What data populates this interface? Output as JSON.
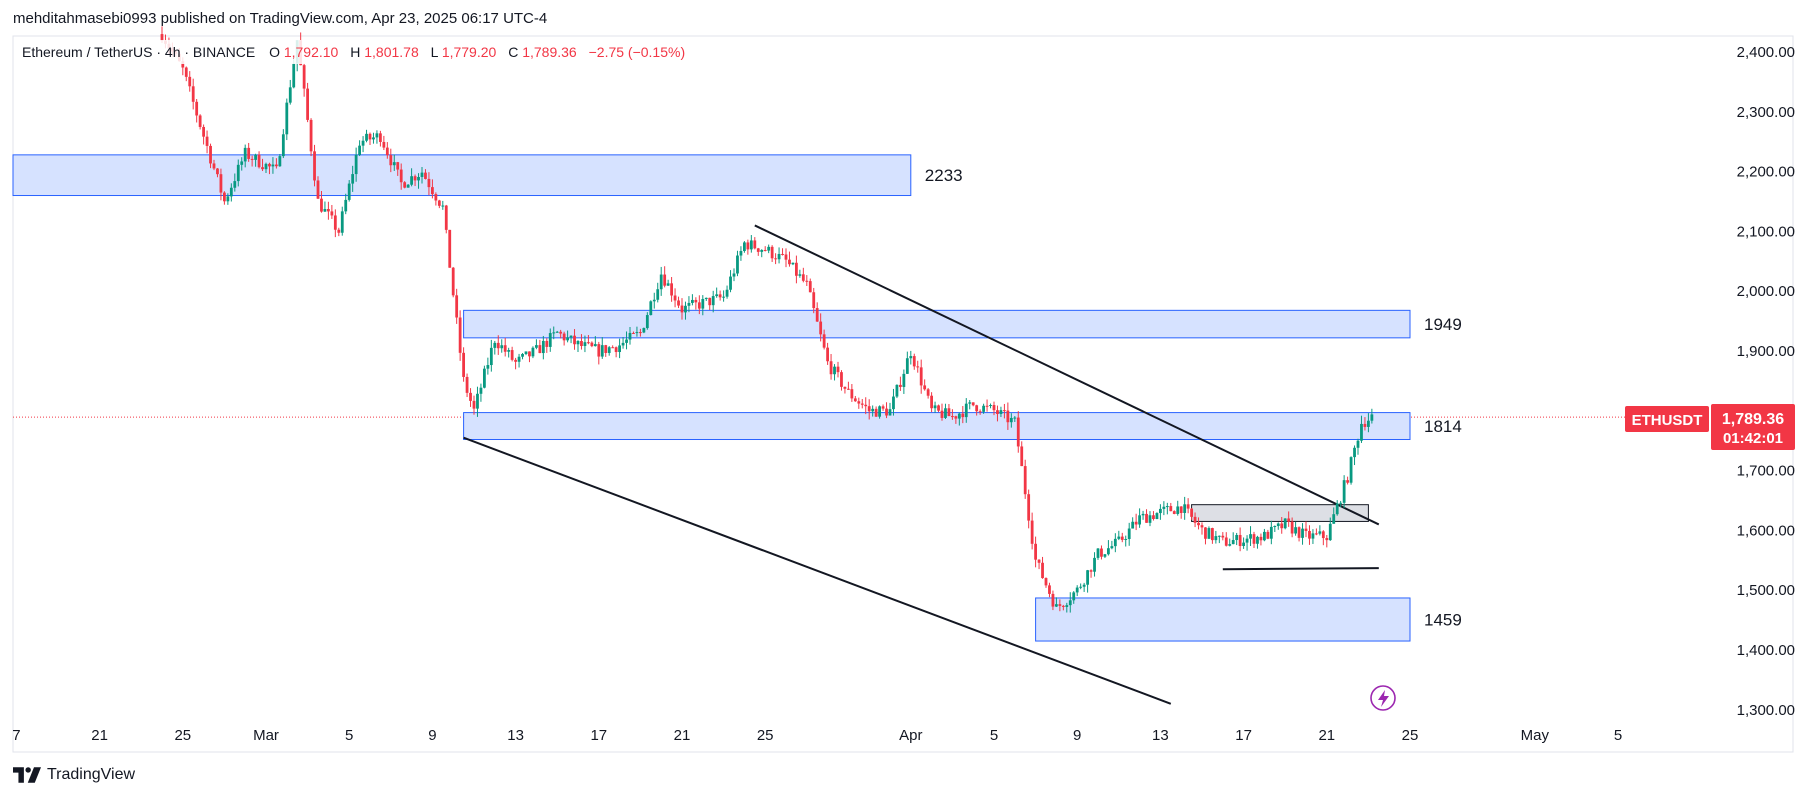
{
  "header": {
    "published": "mehditahmasebi0993 published on TradingView.com, Apr 23, 2025 06:17 UTC-4"
  },
  "symbol_bar": {
    "pair": "Ethereum / TetherUS · 4h · BINANCE",
    "o_label": "O",
    "o_value": "1,792.10",
    "h_label": "H",
    "h_value": "1,801.78",
    "l_label": "L",
    "l_value": "1,779.20",
    "c_label": "C",
    "c_value": "1,789.36",
    "change": "−2.75 (−0.15%)"
  },
  "price_tag": {
    "symbol": "ETHUSDT",
    "price": "1,789.36",
    "countdown": "01:42:01"
  },
  "footer": {
    "brand": "TradingView"
  },
  "colors": {
    "up": "#26a69a",
    "up_candle": "#089981",
    "down": "#f23645",
    "zone_fill": "#d6e2ff",
    "zone_stroke": "#2962ff",
    "box_fill": "#d1d4dc",
    "trendline": "#131722",
    "text": "#131722",
    "tag_red": "#f23645"
  },
  "chart_data": {
    "type": "candlestick",
    "title": "",
    "xlabel": "",
    "ylabel": "",
    "ylim": [
      1270,
      2470
    ],
    "y_ticks": [
      "2,400.00",
      "2,300.00",
      "2,200.00",
      "2,100.00",
      "2,000.00",
      "1,900.00",
      "1,700.00",
      "1,600.00",
      "1,500.00",
      "1,400.00",
      "1,300.00"
    ],
    "y_tick_values": [
      2400,
      2300,
      2200,
      2100,
      2000,
      1900,
      1700,
      1600,
      1500,
      1400,
      1300
    ],
    "x_ticks": [
      "7",
      "21",
      "25",
      "Mar",
      "5",
      "9",
      "13",
      "17",
      "21",
      "25",
      "Apr",
      "5",
      "9",
      "13",
      "17",
      "21",
      "25",
      "May",
      "5"
    ],
    "x_tick_dates": [
      "2025-02-17",
      "2025-02-21",
      "2025-02-25",
      "2025-03-01",
      "2025-03-05",
      "2025-03-09",
      "2025-03-13",
      "2025-03-17",
      "2025-03-21",
      "2025-03-25",
      "2025-04-01",
      "2025-04-05",
      "2025-04-09",
      "2025-04-13",
      "2025-04-17",
      "2025-04-21",
      "2025-04-25",
      "2025-05-01",
      "2025-05-05"
    ],
    "close_path": [
      {
        "x": "2025-02-24T00:00",
        "y": 2430
      },
      {
        "x": "2025-02-25T00:00",
        "y": 2370
      },
      {
        "x": "2025-02-26T00:00",
        "y": 2260
      },
      {
        "x": "2025-02-27T00:00",
        "y": 2150
      },
      {
        "x": "2025-02-28T00:00",
        "y": 2230
      },
      {
        "x": "2025-03-01T12:00",
        "y": 2200
      },
      {
        "x": "2025-03-02T12:00",
        "y": 2420
      },
      {
        "x": "2025-03-03T12:00",
        "y": 2150
      },
      {
        "x": "2025-03-04T12:00",
        "y": 2100
      },
      {
        "x": "2025-03-05T12:00",
        "y": 2250
      },
      {
        "x": "2025-03-06T12:00",
        "y": 2260
      },
      {
        "x": "2025-03-07T12:00",
        "y": 2180
      },
      {
        "x": "2025-03-08T12:00",
        "y": 2200
      },
      {
        "x": "2025-03-09T12:00",
        "y": 2140
      },
      {
        "x": "2025-03-10T12:00",
        "y": 1850
      },
      {
        "x": "2025-03-11T00:00",
        "y": 1800
      },
      {
        "x": "2025-03-12T00:00",
        "y": 1920
      },
      {
        "x": "2025-03-13T00:00",
        "y": 1880
      },
      {
        "x": "2025-03-14T00:00",
        "y": 1900
      },
      {
        "x": "2025-03-15T00:00",
        "y": 1930
      },
      {
        "x": "2025-03-16T00:00",
        "y": 1910
      },
      {
        "x": "2025-03-17T00:00",
        "y": 1900
      },
      {
        "x": "2025-03-18T00:00",
        "y": 1910
      },
      {
        "x": "2025-03-19T00:00",
        "y": 1930
      },
      {
        "x": "2025-03-20T00:00",
        "y": 2030
      },
      {
        "x": "2025-03-21T00:00",
        "y": 1970
      },
      {
        "x": "2025-03-22T00:00",
        "y": 1980
      },
      {
        "x": "2025-03-23T00:00",
        "y": 1990
      },
      {
        "x": "2025-03-24T00:00",
        "y": 2080
      },
      {
        "x": "2025-03-25T00:00",
        "y": 2070
      },
      {
        "x": "2025-03-26T00:00",
        "y": 2050
      },
      {
        "x": "2025-03-27T00:00",
        "y": 2010
      },
      {
        "x": "2025-03-28T00:00",
        "y": 1880
      },
      {
        "x": "2025-03-29T00:00",
        "y": 1830
      },
      {
        "x": "2025-03-30T00:00",
        "y": 1800
      },
      {
        "x": "2025-03-31T00:00",
        "y": 1800
      },
      {
        "x": "2025-04-01T00:00",
        "y": 1900
      },
      {
        "x": "2025-04-02T00:00",
        "y": 1800
      },
      {
        "x": "2025-04-03T00:00",
        "y": 1790
      },
      {
        "x": "2025-04-04T00:00",
        "y": 1810
      },
      {
        "x": "2025-04-05T00:00",
        "y": 1800
      },
      {
        "x": "2025-04-06T00:00",
        "y": 1780
      },
      {
        "x": "2025-04-07T00:00",
        "y": 1550
      },
      {
        "x": "2025-04-08T00:00",
        "y": 1470
      },
      {
        "x": "2025-04-09T00:00",
        "y": 1500
      },
      {
        "x": "2025-04-10T00:00",
        "y": 1560
      },
      {
        "x": "2025-04-11T00:00",
        "y": 1580
      },
      {
        "x": "2025-04-12T00:00",
        "y": 1620
      },
      {
        "x": "2025-04-13T00:00",
        "y": 1630
      },
      {
        "x": "2025-04-14T00:00",
        "y": 1640
      },
      {
        "x": "2025-04-15T00:00",
        "y": 1600
      },
      {
        "x": "2025-04-16T00:00",
        "y": 1580
      },
      {
        "x": "2025-04-17T00:00",
        "y": 1585
      },
      {
        "x": "2025-04-18T00:00",
        "y": 1590
      },
      {
        "x": "2025-04-19T00:00",
        "y": 1610
      },
      {
        "x": "2025-04-20T00:00",
        "y": 1590
      },
      {
        "x": "2025-04-21T00:00",
        "y": 1590
      },
      {
        "x": "2025-04-22T00:00",
        "y": 1690
      },
      {
        "x": "2025-04-22T16:00",
        "y": 1780
      },
      {
        "x": "2025-04-23T04:00",
        "y": 1789.36
      }
    ],
    "zones": [
      {
        "label": "2233",
        "from": "2025-02-15",
        "to": "2025-04-01",
        "low": 2160,
        "high": 2228
      },
      {
        "label": "1949",
        "from": "2025-03-10T12:00",
        "to": "2025-04-25",
        "low": 1922,
        "high": 1968
      },
      {
        "label": "1814",
        "from": "2025-03-10T12:00",
        "to": "2025-04-25",
        "low": 1752,
        "high": 1797
      },
      {
        "label": "1459",
        "from": "2025-04-07",
        "to": "2025-04-25",
        "low": 1415,
        "high": 1487
      }
    ],
    "consolidation_box": {
      "from": "2025-04-14T12:00",
      "to": "2025-04-23",
      "low": 1615,
      "high": 1643
    },
    "trendlines": [
      {
        "start": {
          "x": "2025-03-24T12:00",
          "y": 2110
        },
        "end": {
          "x": "2025-04-23T12:00",
          "y": 1610
        }
      },
      {
        "start": {
          "x": "2025-03-10T12:00",
          "y": 1755
        },
        "end": {
          "x": "2025-04-13T12:00",
          "y": 1310
        }
      },
      {
        "start": {
          "x": "2025-04-16T00:00",
          "y": 1535
        },
        "end": {
          "x": "2025-04-23T12:00",
          "y": 1537
        }
      }
    ],
    "last_price_line": 1789.36
  }
}
